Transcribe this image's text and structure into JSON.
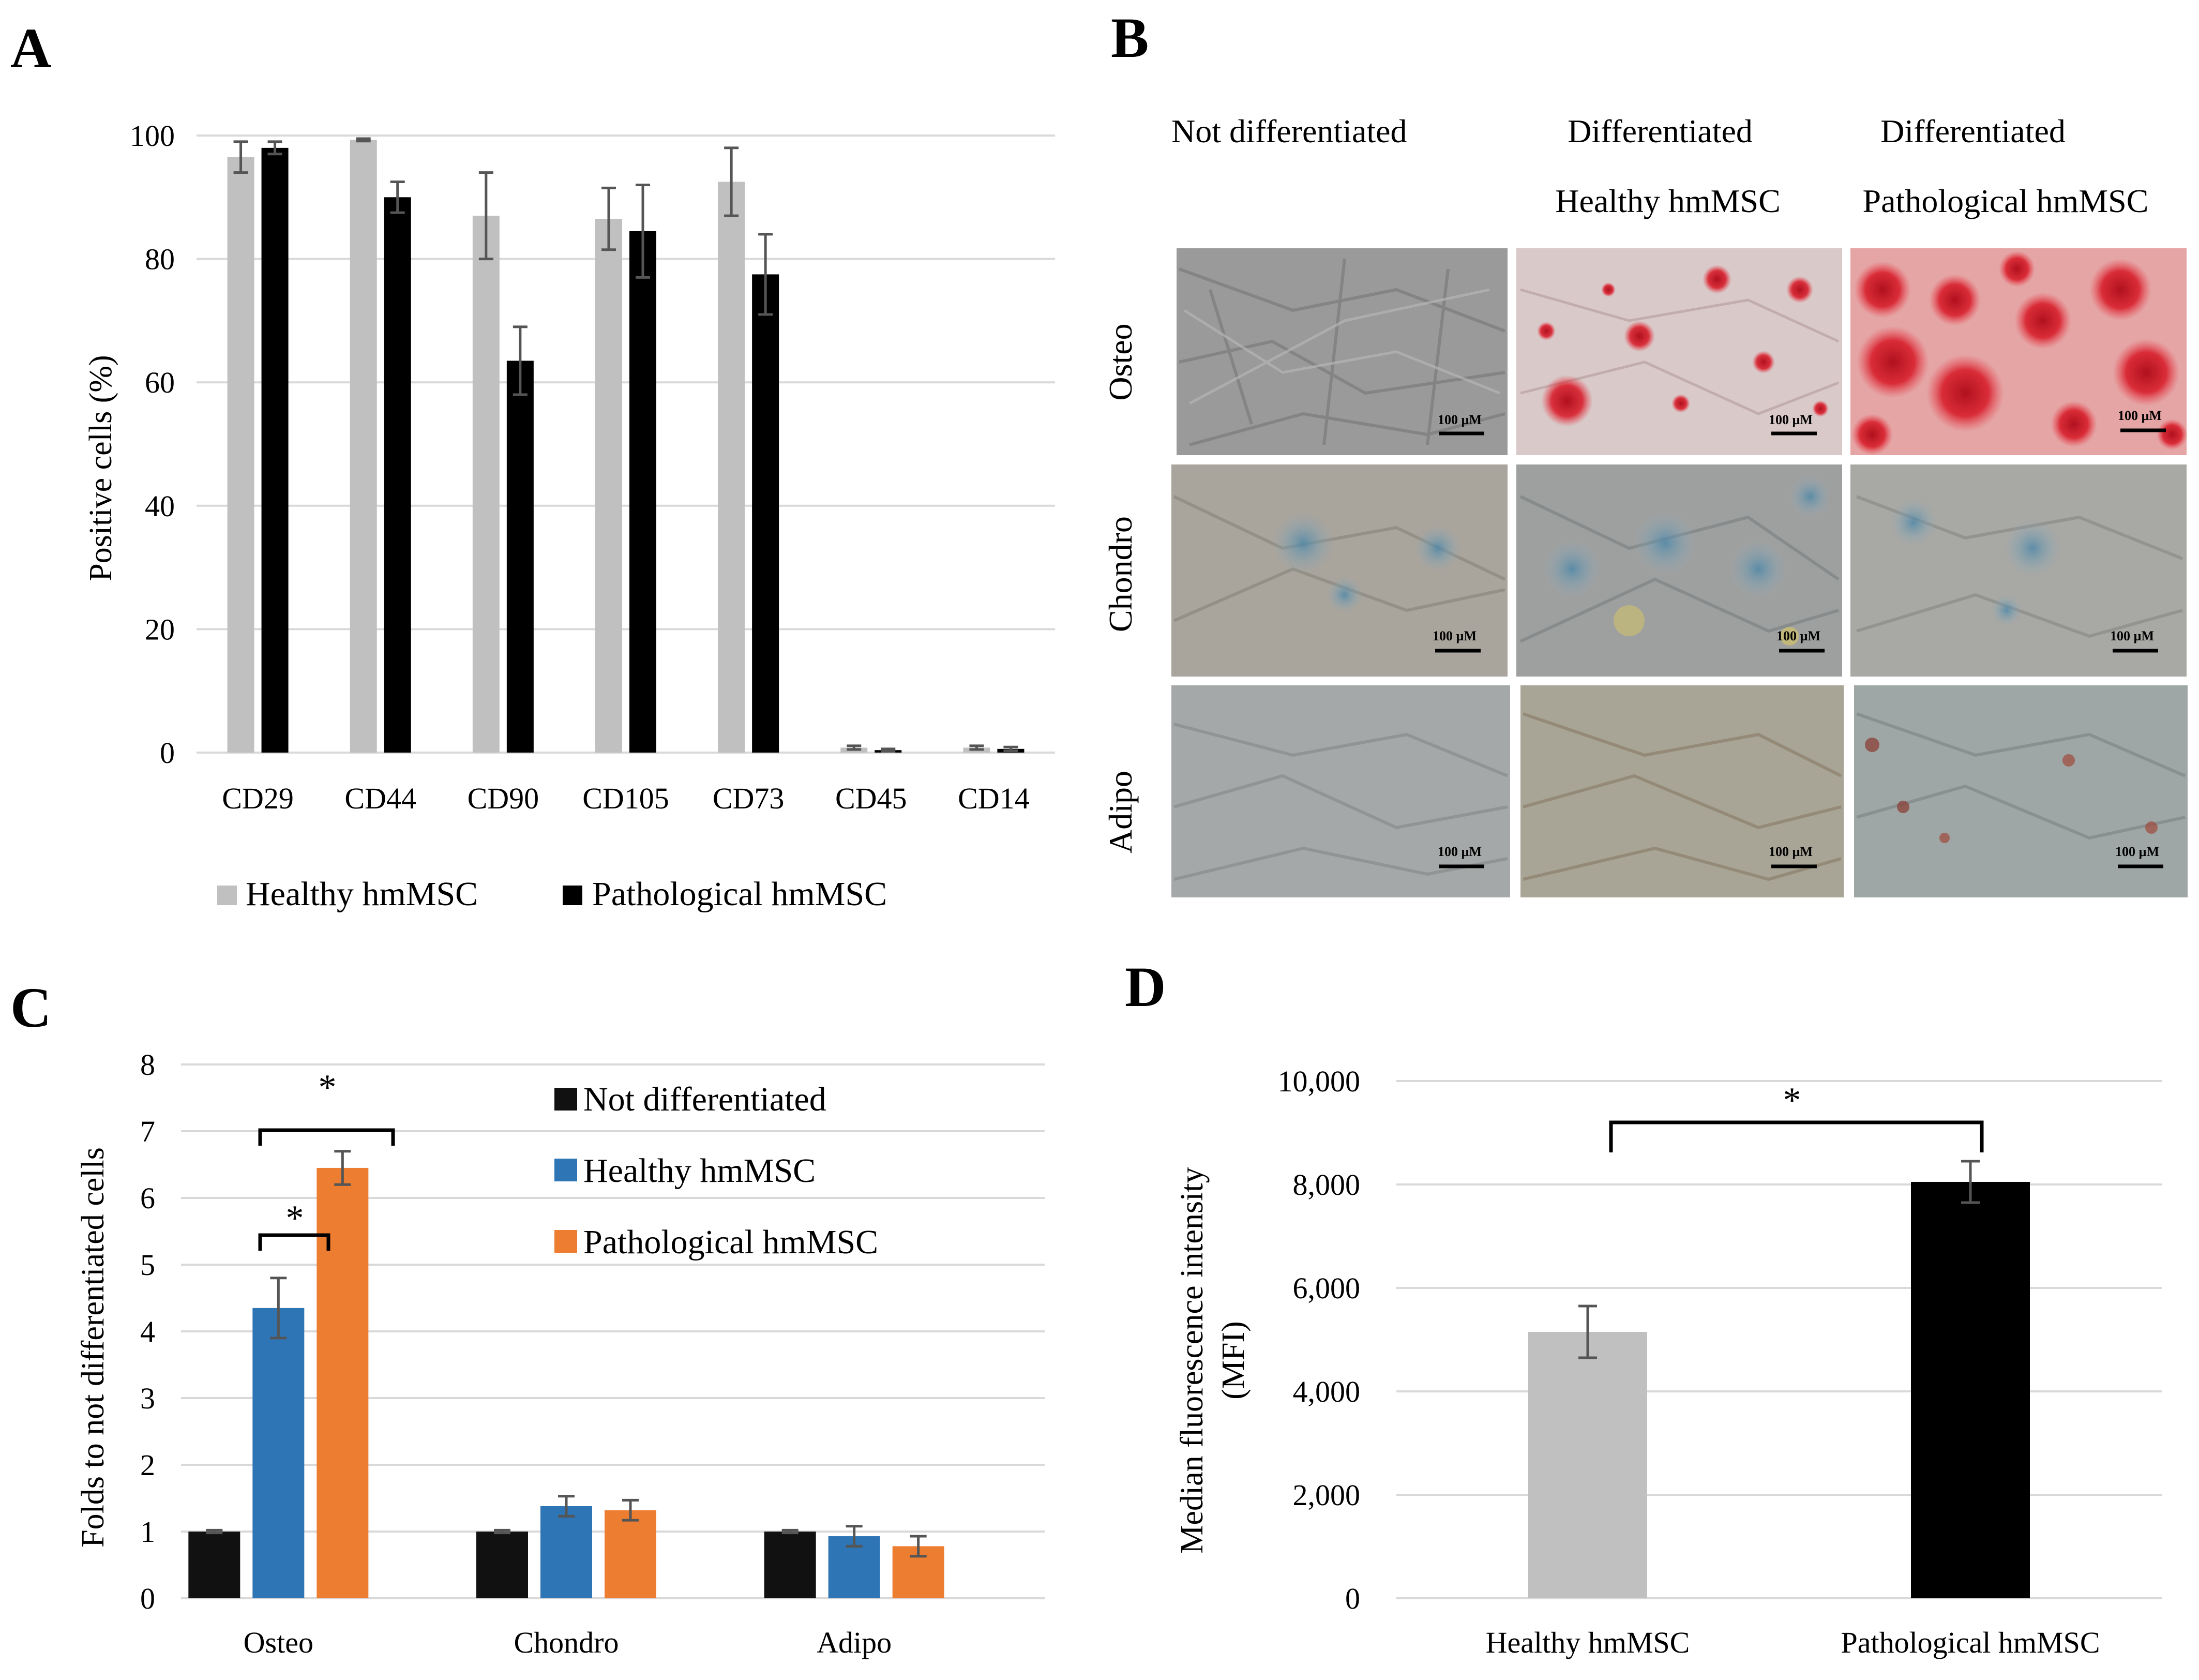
{
  "panels": {
    "A": {
      "letter": "A"
    },
    "B": {
      "letter": "B"
    },
    "C": {
      "letter": "C"
    },
    "D": {
      "letter": "D"
    }
  },
  "chart_data": [
    {
      "id": "A",
      "type": "bar",
      "ylabel": "Positive cells (%)",
      "xlabel": "",
      "ylim": [
        0,
        100
      ],
      "yticks": [
        0,
        20,
        40,
        60,
        80,
        100
      ],
      "grid": true,
      "legend": "bottom",
      "categories": [
        "CD29",
        "CD44",
        "CD90",
        "CD105",
        "CD73",
        "CD45",
        "CD14"
      ],
      "series": [
        {
          "name": "Healthy hmMSC",
          "color": "#c0c0c0",
          "values": [
            96.5,
            99.3,
            87,
            86.5,
            92.5,
            0.8,
            0.8
          ],
          "errors": [
            2.5,
            0.2,
            7,
            5,
            5.5,
            0.3,
            0.3
          ]
        },
        {
          "name": "Pathological hmMSC",
          "color": "#000000",
          "values": [
            98,
            90,
            63.5,
            84.5,
            77.5,
            0.4,
            0.6
          ],
          "errors": [
            1,
            2.5,
            5.5,
            7.5,
            6.5,
            0.2,
            0.3
          ]
        }
      ]
    },
    {
      "id": "C",
      "type": "bar",
      "ylabel": "Folds to not differentiated cells",
      "xlabel": "",
      "ylim": [
        0,
        8
      ],
      "yticks": [
        0,
        1,
        2,
        3,
        4,
        5,
        6,
        7,
        8
      ],
      "grid": true,
      "legend": "top-right",
      "categories": [
        "Osteo",
        "Chondro",
        "Adipo"
      ],
      "series": [
        {
          "name": "Not differentiated",
          "color": "#111111",
          "values": [
            1,
            1,
            1
          ],
          "errors": [
            0.02,
            0.02,
            0.02
          ]
        },
        {
          "name": "Healthy hmMSC",
          "color": "#2e75b6",
          "values": [
            4.35,
            1.38,
            0.93
          ],
          "errors": [
            0.45,
            0.15,
            0.15
          ]
        },
        {
          "name": "Pathological hmMSC",
          "color": "#ed7d31",
          "values": [
            6.45,
            1.32,
            0.78
          ],
          "errors": [
            0.25,
            0.15,
            0.15
          ]
        }
      ],
      "annotations": [
        "*",
        "*"
      ]
    },
    {
      "id": "D",
      "type": "bar",
      "ylabel": "Median fluorescence intensity (MFI)",
      "xlabel": "",
      "ylim": [
        0,
        10000
      ],
      "yticks": [
        0,
        2000,
        4000,
        6000,
        8000,
        10000
      ],
      "ytick_labels": [
        "0",
        "2,000",
        "4,000",
        "6,000",
        "8,000",
        "10,000"
      ],
      "grid": true,
      "categories": [
        "Healthy hmMSC",
        "Pathological hmMSC"
      ],
      "series": [
        {
          "name": "MFI",
          "colors": [
            "#c0c0c0",
            "#000000"
          ],
          "values": [
            5150,
            8050
          ],
          "errors": [
            500,
            400
          ]
        }
      ],
      "annotations": [
        "*"
      ]
    }
  ],
  "panel_b": {
    "column_headers": [
      {
        "line1": "Not differentiated",
        "line2": ""
      },
      {
        "line1": "Differentiated",
        "line2": "Healthy hmMSC"
      },
      {
        "line1": "Differentiated",
        "line2": "Pathological hmMSC"
      }
    ],
    "row_labels": [
      "Osteo",
      "Chondro",
      "Adipo"
    ],
    "scale_label": "100 µM"
  }
}
